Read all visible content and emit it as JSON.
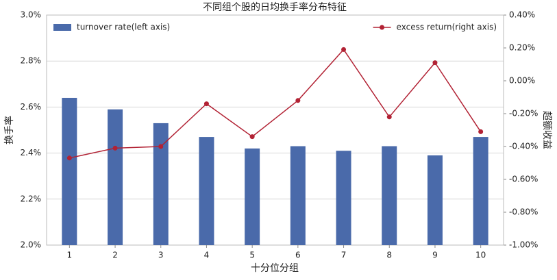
{
  "chart_data": {
    "type": "bar_line_dual_axis",
    "title": "不同组个股的日均换手率分布特征",
    "x_label": "十分位分组",
    "y_label": "换手率",
    "y2_label": "超额收益",
    "categories": [
      "1",
      "2",
      "3",
      "4",
      "5",
      "6",
      "7",
      "8",
      "9",
      "10"
    ],
    "series": [
      {
        "name": "turnover rate(left axis)",
        "type": "bar",
        "color": "#4a6aaa",
        "legend_loc": "upper left",
        "values": [
          2.64,
          2.59,
          2.53,
          2.47,
          2.42,
          2.43,
          2.41,
          2.43,
          2.39,
          2.47
        ]
      },
      {
        "name": "excess return(right axis)",
        "type": "line",
        "axis": "y2",
        "color": "#b22234",
        "legend_loc": "upper right",
        "values": [
          -0.47,
          -0.41,
          -0.4,
          -0.14,
          -0.34,
          -0.12,
          0.19,
          -0.22,
          0.11,
          -0.31
        ]
      }
    ],
    "ylim": [
      2.0,
      3.0
    ],
    "yticks": [
      {
        "value": 2.0,
        "label": "2.0%"
      },
      {
        "value": 2.2,
        "label": "2.2%"
      },
      {
        "value": 2.4,
        "label": "2.4%"
      },
      {
        "value": 2.6,
        "label": "2.6%"
      },
      {
        "value": 2.8,
        "label": "2.8%"
      },
      {
        "value": 3.0,
        "label": "3.0%"
      }
    ],
    "y2lim": [
      -1.0,
      0.4
    ],
    "y2ticks": [
      {
        "value": -1.0,
        "label": "-1.00%"
      },
      {
        "value": -0.8,
        "label": "-0.80%"
      },
      {
        "value": -0.6,
        "label": "-0.60%"
      },
      {
        "value": -0.4,
        "label": "-0.40%"
      },
      {
        "value": -0.2,
        "label": "-0.20%"
      },
      {
        "value": 0.0,
        "label": "0.00%"
      },
      {
        "value": 0.2,
        "label": "0.20%"
      },
      {
        "value": 0.4,
        "label": "0.40%"
      }
    ],
    "grid": true
  }
}
